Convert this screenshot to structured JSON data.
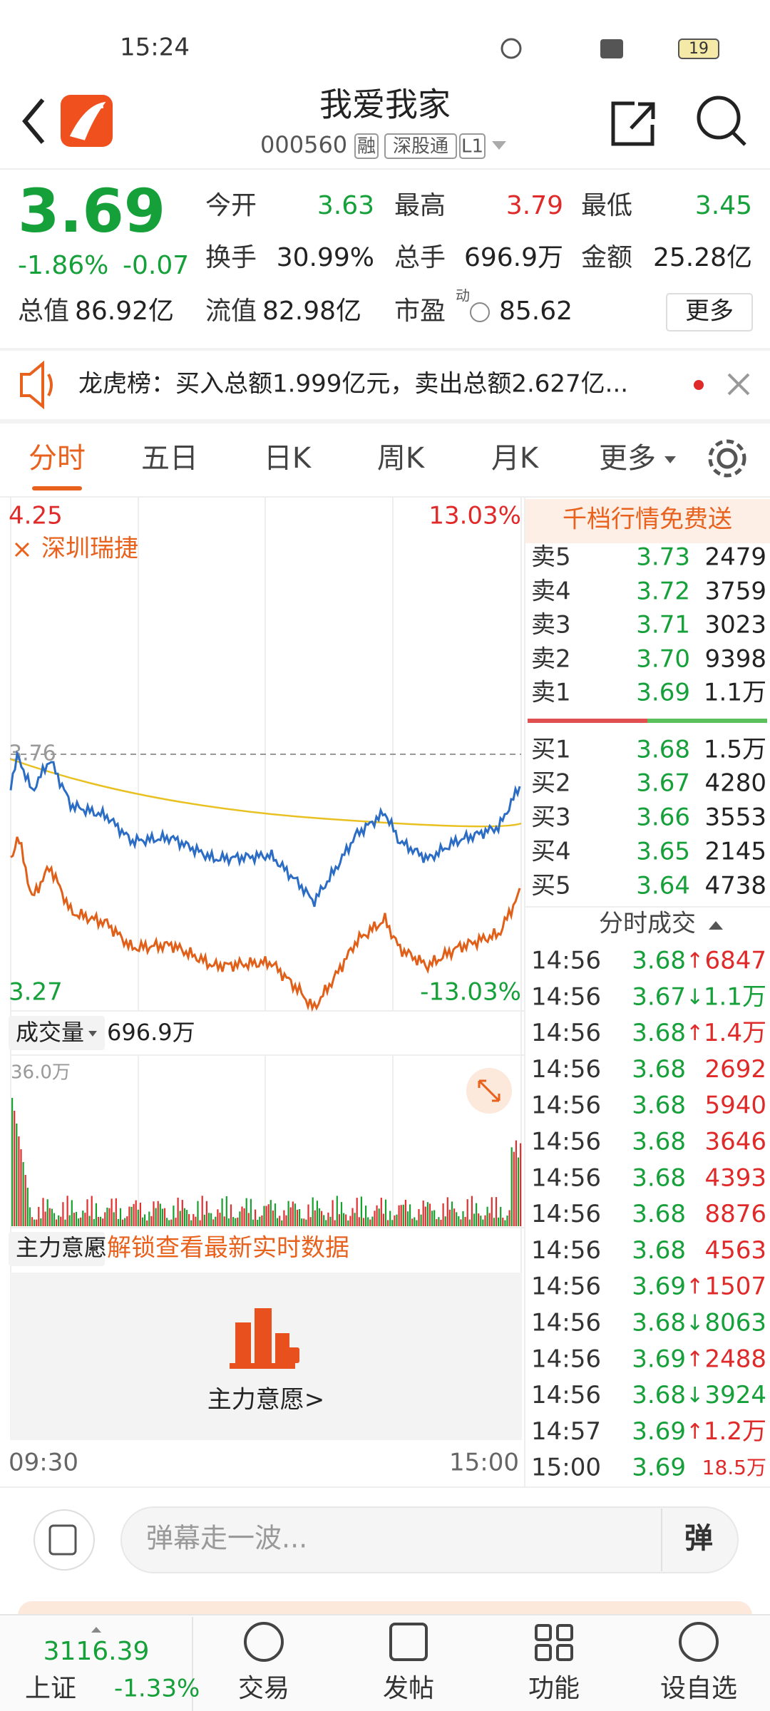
{
  "status_bar": {
    "time": "15:24",
    "battery": "19"
  },
  "header": {
    "title": "我爱我家",
    "code": "000560",
    "badges": [
      "融",
      "深股通",
      "L1"
    ]
  },
  "quote": {
    "price": "3.69",
    "change_pct": "-1.86%",
    "change": "-0.07",
    "color": "#15a03a",
    "fields": [
      {
        "label": "今开",
        "value": "3.63",
        "color": "#15a03a"
      },
      {
        "label": "最高",
        "value": "3.79",
        "color": "#e02a2a"
      },
      {
        "label": "最低",
        "value": "3.45",
        "color": "#15a03a"
      },
      {
        "label": "换手",
        "value": "30.99%"
      },
      {
        "label": "总手",
        "value": "696.9万"
      },
      {
        "label": "金额",
        "value": "25.28亿"
      },
      {
        "label": "总值",
        "value": "86.92亿"
      },
      {
        "label": "流值",
        "value": "82.98亿"
      },
      {
        "label": "市盈",
        "sup": "动",
        "value": "85.62"
      }
    ],
    "more": "更多"
  },
  "notice": "龙虎榜：买入总额1.999亿元，卖出总额2.627亿...",
  "tabs": [
    "分时",
    "五日",
    "日K",
    "周K",
    "月K",
    "更多"
  ],
  "chart": {
    "top_price": "4.25",
    "top_pct": "13.03%",
    "compare": "深圳瑞捷",
    "mid_price": "3.76",
    "bottom_price": "3.27",
    "bottom_pct": "-13.03%",
    "volume_label": "成交量",
    "volume": "696.9万",
    "volume_max": "36.0万",
    "indicator_label": "主力意愿",
    "unlock": "解锁查看最新实时数据",
    "indicator_button": "主力意愿>",
    "start_time": "09:30",
    "end_time": "15:00"
  },
  "order_book": {
    "banner": "千档行情免费送",
    "asks": [
      {
        "label": "卖5",
        "price": "3.73",
        "volume": "2479"
      },
      {
        "label": "卖4",
        "price": "3.72",
        "volume": "3759"
      },
      {
        "label": "卖3",
        "price": "3.71",
        "volume": "3023"
      },
      {
        "label": "卖2",
        "price": "3.70",
        "volume": "9398"
      },
      {
        "label": "卖1",
        "price": "3.69",
        "volume": "1.1万"
      }
    ],
    "bids": [
      {
        "label": "买1",
        "price": "3.68",
        "volume": "1.5万"
      },
      {
        "label": "买2",
        "price": "3.67",
        "volume": "4280"
      },
      {
        "label": "买3",
        "price": "3.66",
        "volume": "3553"
      },
      {
        "label": "买4",
        "price": "3.65",
        "volume": "2145"
      },
      {
        "label": "买5",
        "price": "3.64",
        "volume": "4738"
      }
    ]
  },
  "trades": {
    "title": "分时成交",
    "rows": [
      {
        "time": "14:56",
        "price": "3.68",
        "arrow": "↑",
        "volume": "6847",
        "color": "#e02a2a"
      },
      {
        "time": "14:56",
        "price": "3.67",
        "arrow": "↓",
        "volume": "1.1万",
        "color": "#15a03a"
      },
      {
        "time": "14:56",
        "price": "3.68",
        "arrow": "↑",
        "volume": "1.4万",
        "color": "#e02a2a"
      },
      {
        "time": "14:56",
        "price": "3.68",
        "volume": "2692",
        "color": "#e02a2a"
      },
      {
        "time": "14:56",
        "price": "3.68",
        "volume": "5940",
        "color": "#e02a2a"
      },
      {
        "time": "14:56",
        "price": "3.68",
        "volume": "3646",
        "color": "#e02a2a"
      },
      {
        "time": "14:56",
        "price": "3.68",
        "volume": "4393",
        "color": "#e02a2a"
      },
      {
        "time": "14:56",
        "price": "3.68",
        "volume": "8876",
        "color": "#e02a2a"
      },
      {
        "time": "14:56",
        "price": "3.68",
        "volume": "4563",
        "color": "#e02a2a"
      },
      {
        "time": "14:56",
        "price": "3.69",
        "arrow": "↑",
        "volume": "1507",
        "color": "#e02a2a"
      },
      {
        "time": "14:56",
        "price": "3.68",
        "arrow": "↓",
        "volume": "8063",
        "color": "#15a03a"
      },
      {
        "time": "14:56",
        "price": "3.69",
        "arrow": "↑",
        "volume": "2488",
        "color": "#e02a2a"
      },
      {
        "time": "14:56",
        "price": "3.68",
        "arrow": "↓",
        "volume": "3924",
        "color": "#15a03a"
      },
      {
        "time": "14:57",
        "price": "3.69",
        "arrow": "↑",
        "volume": "1.2万",
        "color": "#e02a2a"
      },
      {
        "time": "15:00",
        "price": "3.69",
        "volume": "18.5万",
        "color": "#e02a2a"
      }
    ]
  },
  "comment": {
    "placeholder": "弹幕走一波...",
    "button": "弹"
  },
  "bottom_nav": {
    "index_value": "3116.39",
    "index_name": "上证",
    "index_change": "-1.33%",
    "items": [
      "交易",
      "发帖",
      "功能",
      "设自选"
    ]
  }
}
